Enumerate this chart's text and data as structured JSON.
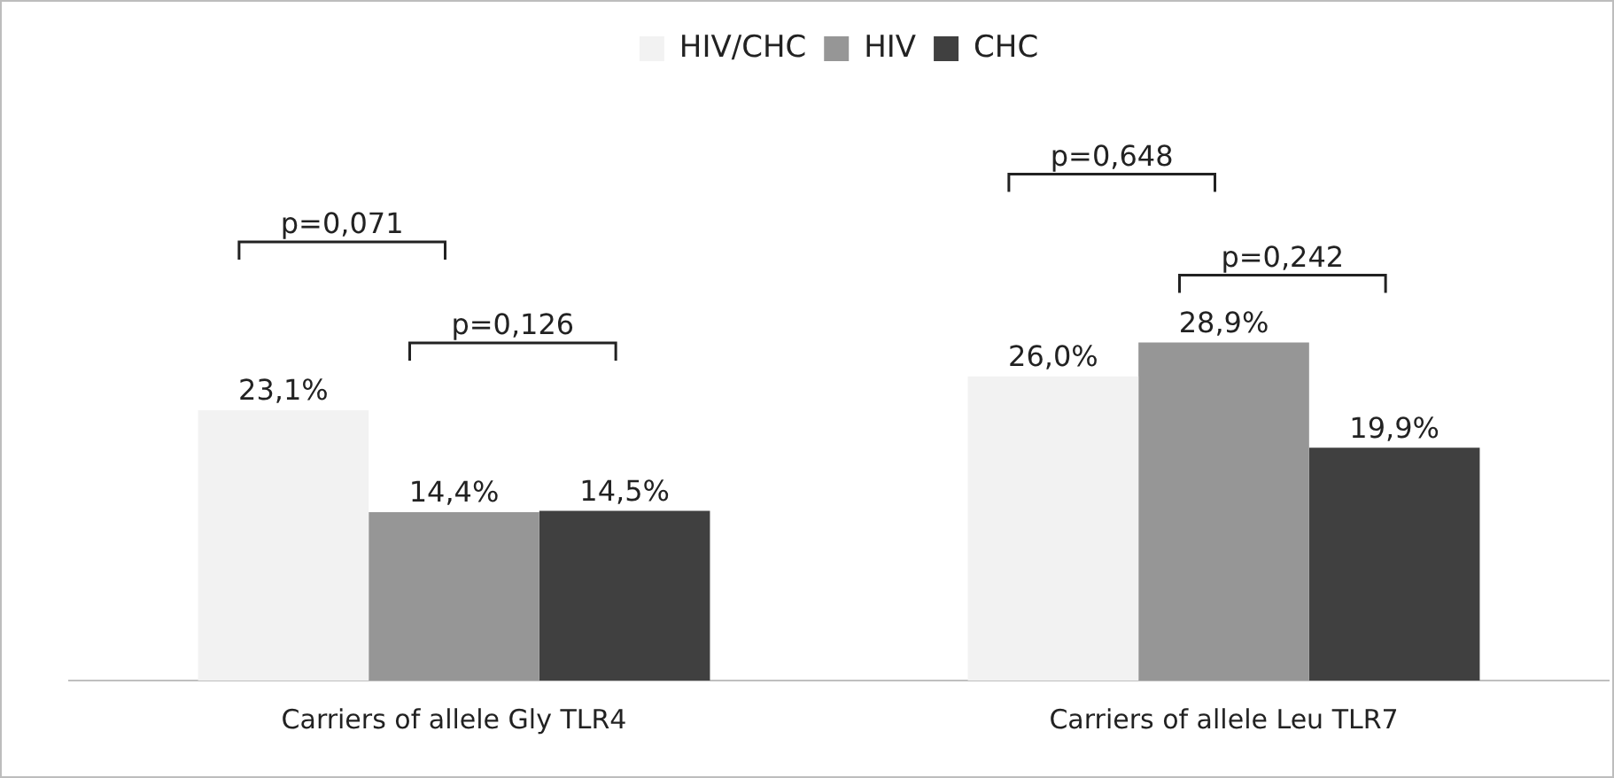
{
  "chart_data": {
    "type": "bar",
    "categories": [
      "Carriers of allele Gly TLR4",
      "Carriers of allele Leu TLR7"
    ],
    "series": [
      {
        "name": "HIV/CHC",
        "color": "#f2f2f2",
        "values": [
          23.1,
          26.0
        ],
        "value_labels": [
          "23,1%",
          "26,0%"
        ]
      },
      {
        "name": "HIV",
        "color": "#969696",
        "values": [
          14.4,
          28.9
        ],
        "value_labels": [
          "14,4%",
          "28,9%"
        ]
      },
      {
        "name": "CHC",
        "color": "#404040",
        "values": [
          14.5,
          19.9
        ],
        "value_labels": [
          "14,5%",
          "19,9%"
        ]
      }
    ],
    "tick_labels": "x",
    "grid": false,
    "legend": "top",
    "annotations": [
      "p=0,071",
      "p=0,126",
      "p=0,648",
      "p=0,242"
    ]
  }
}
